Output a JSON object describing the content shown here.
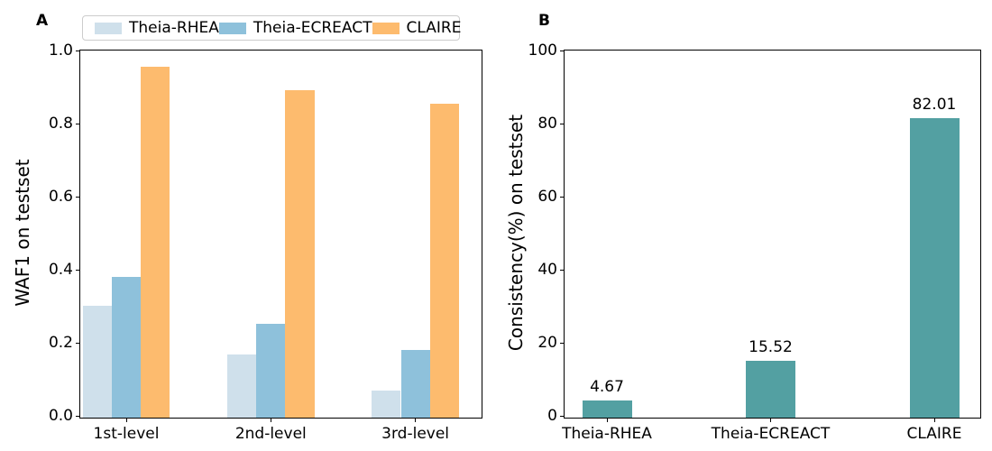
{
  "figure": {
    "panel_a_title": "A",
    "panel_b_title": "B"
  },
  "chart_data": [
    {
      "type": "bar",
      "title": "A",
      "categories": [
        "1st-level",
        "2nd-level",
        "3rd-level"
      ],
      "series": [
        {
          "name": "Theia-RHEA",
          "color": "#cfe0eb",
          "values": [
            0.305,
            0.172,
            0.073
          ]
        },
        {
          "name": "Theia-ECREACT",
          "color": "#8ec1db",
          "values": [
            0.385,
            0.258,
            0.185
          ]
        },
        {
          "name": "CLAIRE",
          "color": "#fdbb6e",
          "values": [
            0.96,
            0.897,
            0.86
          ]
        }
      ],
      "xlabel": "",
      "ylabel": "WAF1 on testset",
      "ylim": [
        0,
        1.0
      ],
      "ytick_values": [
        0,
        0.2,
        0.4,
        0.6,
        0.8,
        1.0
      ],
      "ytick_labels": [
        "0.0",
        "0.2",
        "0.4",
        "0.6",
        "0.8",
        "1.0"
      ],
      "grid": false,
      "legend_position": "top"
    },
    {
      "type": "bar",
      "title": "B",
      "categories": [
        "Theia-RHEA",
        "Theia-ECREACT",
        "CLAIRE"
      ],
      "values": [
        4.67,
        15.52,
        82.01
      ],
      "bar_labels": [
        "4.67",
        "15.52",
        "82.01"
      ],
      "color": "#53a0a2",
      "xlabel": "",
      "ylabel": "Consistency(%) on testset",
      "ylim": [
        0,
        100
      ],
      "ytick_values": [
        0,
        20,
        40,
        60,
        80,
        100
      ],
      "ytick_labels": [
        "0",
        "20",
        "40",
        "60",
        "80",
        "100"
      ],
      "grid": false,
      "legend_position": "none"
    }
  ]
}
